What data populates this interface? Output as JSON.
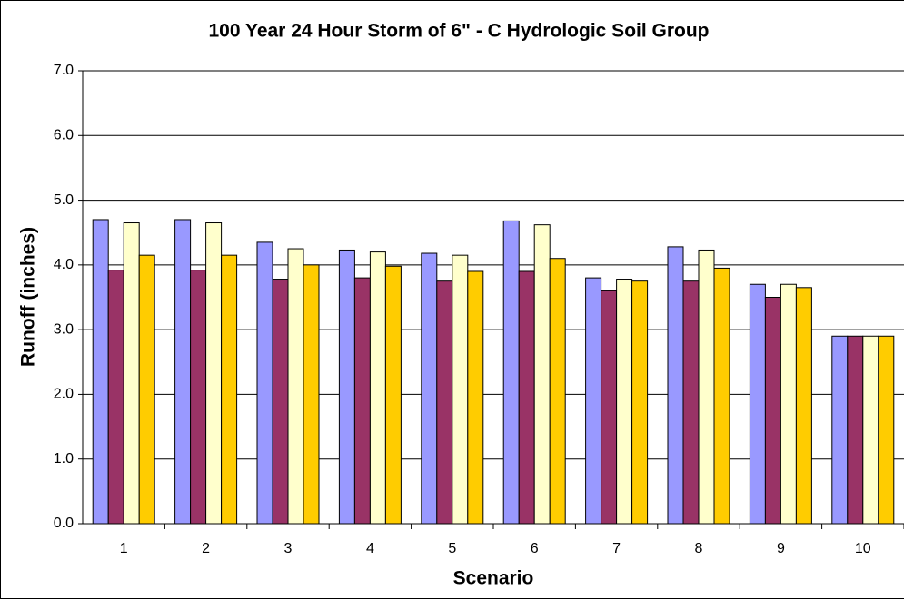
{
  "chart_data": {
    "type": "bar",
    "title": "100 Year 24 Hour Storm of 6\" - C Hydrologic Soil Group",
    "x_label": "Scenario",
    "y_label": "Runoff (inches)",
    "categories": [
      "1",
      "2",
      "3",
      "4",
      "5",
      "6",
      "7",
      "8",
      "9",
      "10"
    ],
    "series": [
      {
        "color": "#9999ff",
        "values": [
          4.7,
          4.7,
          4.35,
          4.23,
          4.18,
          4.68,
          3.8,
          4.28,
          3.7,
          2.9
        ]
      },
      {
        "color": "#993366",
        "values": [
          3.92,
          3.92,
          3.78,
          3.8,
          3.75,
          3.9,
          3.6,
          3.75,
          3.5,
          2.9
        ]
      },
      {
        "color": "#ffffcc",
        "values": [
          4.65,
          4.65,
          4.25,
          4.2,
          4.15,
          4.62,
          3.78,
          4.23,
          3.7,
          2.9
        ]
      },
      {
        "color": "#ffcc00",
        "values": [
          4.15,
          4.15,
          4.0,
          3.98,
          3.9,
          4.1,
          3.75,
          3.95,
          3.65,
          2.9
        ]
      }
    ],
    "ylim": [
      0,
      7
    ],
    "yticks": [
      {
        "value": 0,
        "label": "0.0"
      },
      {
        "value": 1,
        "label": "1.0"
      },
      {
        "value": 2,
        "label": "2.0"
      },
      {
        "value": 3,
        "label": "3.0"
      },
      {
        "value": 4,
        "label": "4.0"
      },
      {
        "value": 5,
        "label": "5.0"
      },
      {
        "value": 6,
        "label": "6.0"
      },
      {
        "value": 7,
        "label": "7.0"
      }
    ],
    "grid": true
  }
}
